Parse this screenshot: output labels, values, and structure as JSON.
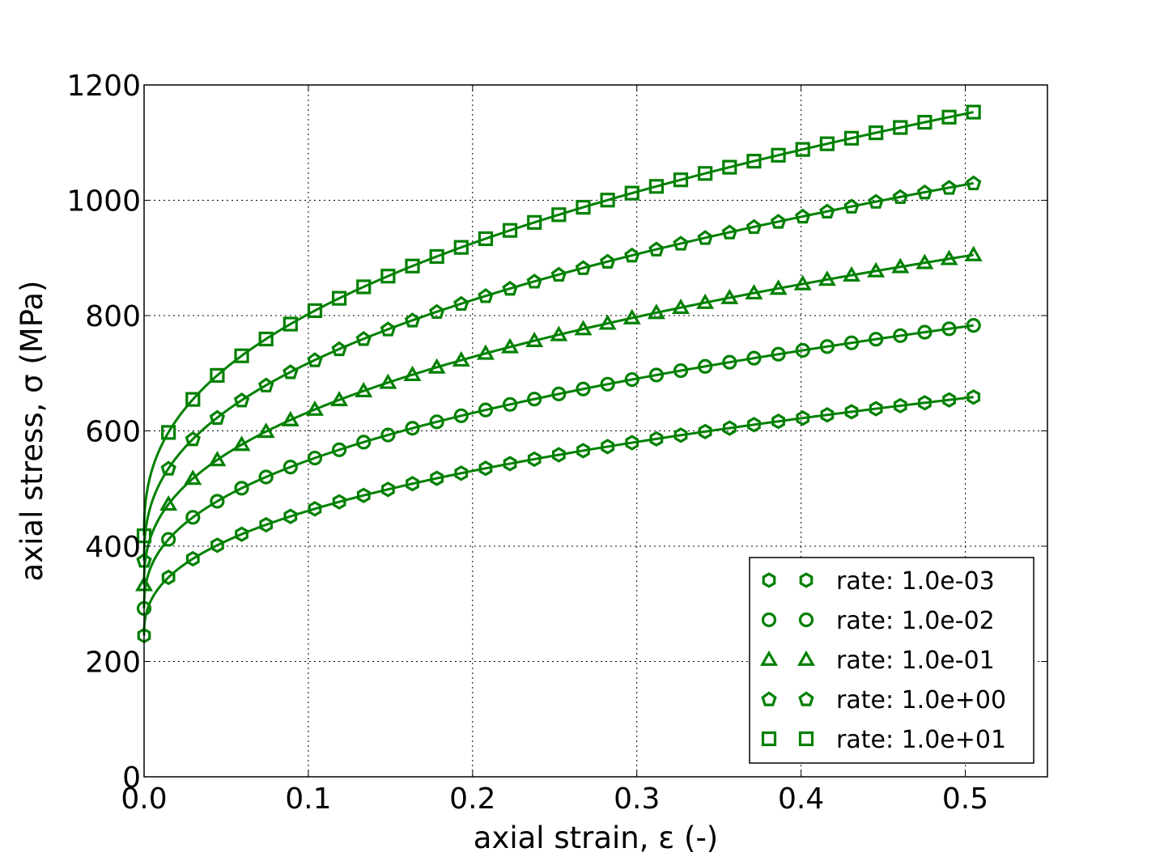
{
  "chart_data": {
    "type": "line",
    "xlabel": "axial strain, ε (-)",
    "ylabel": "axial stress, σ (MPa)",
    "xlim": [
      0.0,
      0.55
    ],
    "ylim": [
      0,
      1200
    ],
    "xticks": [
      0.0,
      0.1,
      0.2,
      0.3,
      0.4,
      0.5
    ],
    "xtick_labels": [
      "0.0",
      "0.1",
      "0.2",
      "0.3",
      "0.4",
      "0.5"
    ],
    "yticks": [
      0,
      200,
      400,
      600,
      800,
      1000,
      1200
    ],
    "ytick_labels": [
      "0",
      "200",
      "400",
      "600",
      "800",
      "1000",
      "1200"
    ],
    "grid": true,
    "legend_position": "bottom-right",
    "color": "#008000",
    "series": [
      {
        "name": "rate: 1.0e-03",
        "marker": "hexagon",
        "y0": 245,
        "y_at_0_5": 657
      },
      {
        "name": "rate: 1.0e-02",
        "marker": "circle",
        "y0": 292,
        "y_at_0_5": 781
      },
      {
        "name": "rate: 1.0e-01",
        "marker": "triangle",
        "y0": 333,
        "y_at_0_5": 903
      },
      {
        "name": "rate: 1.0e+00",
        "marker": "pentagon",
        "y0": 375,
        "y_at_0_5": 1027
      },
      {
        "name": "rate: 1.0e+01",
        "marker": "square",
        "y0": 418,
        "y_at_0_5": 1150
      }
    ]
  }
}
